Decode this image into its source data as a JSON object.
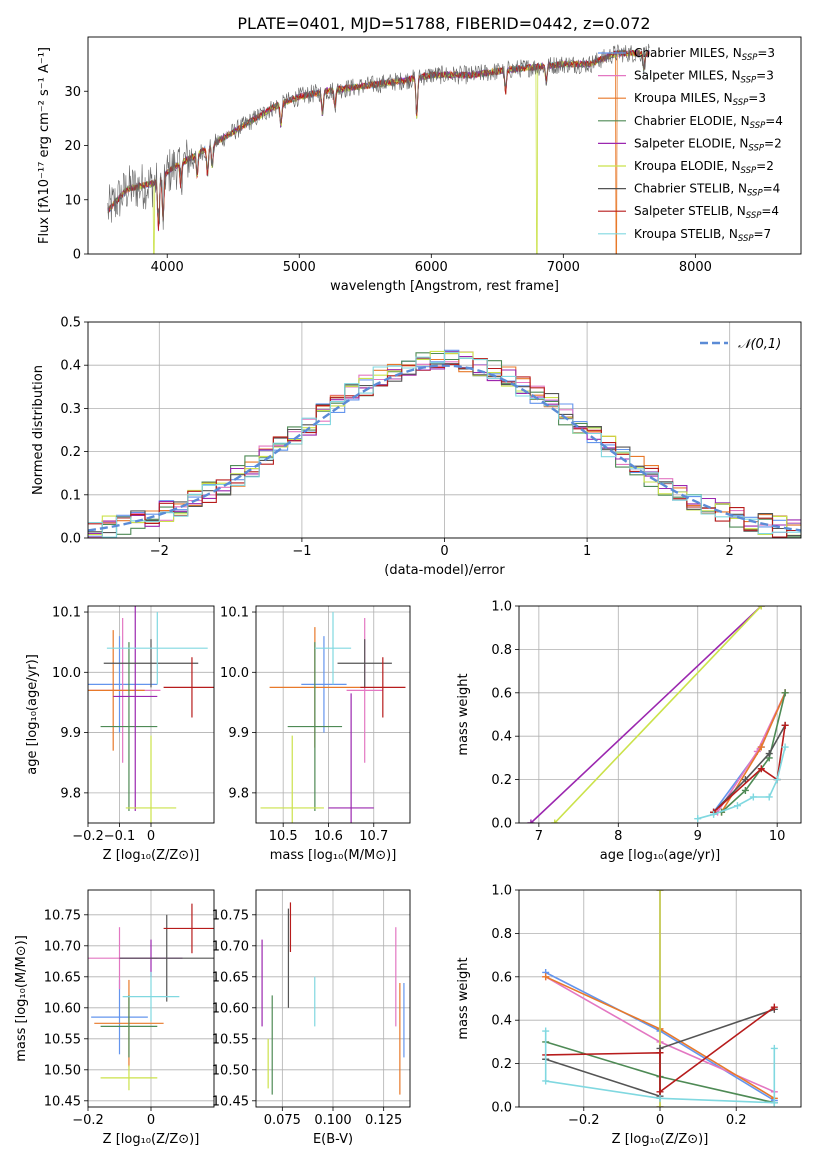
{
  "figure": {
    "title": "PLATE=0401, MJD=51788, FIBERID=0442, z=0.072"
  },
  "chart_data": [
    {
      "id": "spectrum",
      "type": "line",
      "xlabel": "wavelength [Angstrom, rest frame]",
      "ylabel": "Flux [fλ10⁻¹⁷ erg cm⁻² s⁻¹ A⁻¹]",
      "xlim": [
        3400,
        8800
      ],
      "ylim": [
        0,
        40
      ],
      "xticks": [
        4000,
        5000,
        6000,
        7000,
        8000
      ],
      "yticks": [
        0,
        10,
        20,
        30
      ],
      "x_range": [
        3550,
        7650
      ],
      "continuum": [
        [
          3550,
          8
        ],
        [
          3700,
          12
        ],
        [
          3900,
          13
        ],
        [
          4050,
          16
        ],
        [
          4200,
          18
        ],
        [
          4400,
          21
        ],
        [
          4600,
          24
        ],
        [
          4800,
          27
        ],
        [
          5000,
          29
        ],
        [
          5200,
          30
        ],
        [
          5500,
          31
        ],
        [
          5800,
          32
        ],
        [
          6000,
          33
        ],
        [
          6300,
          33
        ],
        [
          6600,
          34
        ],
        [
          7000,
          35
        ],
        [
          7200,
          35
        ],
        [
          7400,
          37
        ],
        [
          7650,
          37
        ]
      ],
      "absorption_lines": [
        [
          3934,
          9
        ],
        [
          3969,
          8
        ],
        [
          4102,
          4
        ],
        [
          4227,
          4
        ],
        [
          4305,
          5
        ],
        [
          4341,
          4
        ],
        [
          4861,
          4
        ],
        [
          5175,
          4
        ],
        [
          5270,
          3
        ],
        [
          5890,
          7
        ],
        [
          6563,
          4
        ],
        [
          6870,
          3
        ],
        [
          7610,
          3
        ]
      ],
      "dropouts": [
        [
          3900,
          "Kroupa ELODIE"
        ],
        [
          6800,
          "Kroupa ELODIE"
        ],
        [
          7400,
          "Kroupa MILES"
        ]
      ],
      "series": [
        {
          "name": "Chabrier MILES, N",
          "sub": "SSP",
          "val": "=3",
          "color": "#6495ed"
        },
        {
          "name": "Salpeter MILES, N",
          "sub": "SSP",
          "val": "=3",
          "color": "#e377c2"
        },
        {
          "name": "Kroupa MILES, N",
          "sub": "SSP",
          "val": "=3",
          "color": "#e8792a"
        },
        {
          "name": "Chabrier ELODIE, N",
          "sub": "SSP",
          "val": "=4",
          "color": "#4e8a55"
        },
        {
          "name": "Salpeter ELODIE, N",
          "sub": "SSP",
          "val": "=2",
          "color": "#9b27af"
        },
        {
          "name": "Kroupa ELODIE, N",
          "sub": "SSP",
          "val": "=2",
          "color": "#cbe24a"
        },
        {
          "name": "Chabrier STELIB, N",
          "sub": "SSP",
          "val": "=4",
          "color": "#555555"
        },
        {
          "name": "Salpeter STELIB, N",
          "sub": "SSP",
          "val": "=4",
          "color": "#b71c1c"
        },
        {
          "name": "Kroupa STELIB, N",
          "sub": "SSP",
          "val": "=7",
          "color": "#80d8e0"
        }
      ],
      "legend": "upper-right"
    },
    {
      "id": "residuals",
      "type": "histogram",
      "xlabel": "(data-model)/error",
      "ylabel": "Normed distribution",
      "xlim": [
        -2.5,
        2.5
      ],
      "ylim": [
        0,
        0.5
      ],
      "xticks": [
        -2,
        -1,
        0,
        1,
        2
      ],
      "yticks": [
        0.0,
        0.1,
        0.2,
        0.3,
        0.4,
        0.5
      ],
      "bin_width": 0.1,
      "bin_start": -2.5,
      "reference": {
        "label": "𝒩(0,1)",
        "color": "#5b8bd6",
        "mean": 0,
        "sigma": 1
      },
      "legend": "upper-right",
      "grid": true
    },
    {
      "id": "age_vs_Z",
      "type": "errorbar",
      "xlabel": "Z [log₁₀(Z/Z⊙)]",
      "ylabel": "age  [log₁₀(age/yr)]",
      "xlim": [
        -0.2,
        0.2
      ],
      "ylim": [
        9.75,
        10.11
      ],
      "xticks": [
        -0.2,
        -0.1,
        0.0
      ],
      "yticks": [
        9.8,
        9.9,
        10.0,
        10.1
      ],
      "points": [
        {
          "series": "Chabrier MILES",
          "x": -0.1,
          "xerr": 0.12,
          "y": 9.98,
          "yerr": 0.08
        },
        {
          "series": "Salpeter MILES",
          "x": -0.09,
          "xerr": 0.12,
          "y": 9.97,
          "yerr": 0.12
        },
        {
          "series": "Kroupa MILES",
          "x": -0.12,
          "xerr": 0.1,
          "y": 9.97,
          "yerr": 0.1
        },
        {
          "series": "Chabrier ELODIE",
          "x": -0.07,
          "xerr": 0.09,
          "y": 9.91,
          "yerr": 0.14
        },
        {
          "series": "Salpeter ELODIE",
          "x": -0.05,
          "xerr": 0.07,
          "y": 9.96,
          "yerr": 0.19
        },
        {
          "series": "Kroupa ELODIE",
          "x": 0.0,
          "xerr": 0.08,
          "y": 9.775,
          "yerr": 0.12
        },
        {
          "series": "Chabrier STELIB",
          "x": 0.0,
          "xerr": 0.15,
          "y": 10.015,
          "yerr": 0.04
        },
        {
          "series": "Salpeter STELIB",
          "x": 0.13,
          "xerr": 0.09,
          "y": 9.975,
          "yerr": 0.05
        },
        {
          "series": "Kroupa STELIB",
          "x": 0.02,
          "xerr": 0.16,
          "y": 10.04,
          "yerr": 0.06
        }
      ],
      "grid": true
    },
    {
      "id": "age_vs_mass",
      "type": "errorbar",
      "xlabel": "mass [log₁₀(M/M⊙)]",
      "ylabel": "",
      "xlim": [
        10.44,
        10.78
      ],
      "ylim": [
        9.75,
        10.11
      ],
      "xticks": [
        10.5,
        10.6,
        10.7
      ],
      "yticks": [
        9.8,
        9.9,
        10.0,
        10.1
      ],
      "points": [
        {
          "series": "Chabrier MILES",
          "x": 10.59,
          "xerr": 0.05,
          "y": 9.98,
          "yerr": 0.08
        },
        {
          "series": "Salpeter MILES",
          "x": 10.68,
          "xerr": 0.04,
          "y": 9.97,
          "yerr": 0.12
        },
        {
          "series": "Kroupa MILES",
          "x": 10.57,
          "xerr": 0.1,
          "y": 9.975,
          "yerr": 0.1
        },
        {
          "series": "Chabrier ELODIE",
          "x": 10.57,
          "xerr": 0.06,
          "y": 9.91,
          "yerr": 0.14
        },
        {
          "series": "Salpeter ELODIE",
          "x": 10.65,
          "xerr": 0.05,
          "y": 9.775,
          "yerr": 0.19
        },
        {
          "series": "Kroupa ELODIE",
          "x": 10.52,
          "xerr": 0.07,
          "y": 9.775,
          "yerr": 0.12
        },
        {
          "series": "Chabrier STELIB",
          "x": 10.68,
          "xerr": 0.06,
          "y": 10.015,
          "yerr": 0.04
        },
        {
          "series": "Salpeter STELIB",
          "x": 10.72,
          "xerr": 0.05,
          "y": 9.975,
          "yerr": 0.05
        },
        {
          "series": "Kroupa STELIB",
          "x": 10.61,
          "xerr": 0.04,
          "y": 10.04,
          "yerr": 0.06
        }
      ],
      "grid": true
    },
    {
      "id": "mass_weight_vs_age",
      "type": "line",
      "xlabel": "age  [log₁₀(age/yr)]",
      "ylabel": "mass weight",
      "xlim": [
        6.75,
        10.3
      ],
      "ylim": [
        0,
        1.0
      ],
      "xticks": [
        7,
        8,
        9,
        10
      ],
      "yticks": [
        0.0,
        0.2,
        0.4,
        0.6,
        0.8,
        1.0
      ],
      "series": [
        {
          "series": "Chabrier MILES",
          "points": [
            [
              9.2,
              0.05
            ],
            [
              9.8,
              0.35
            ],
            [
              10.1,
              0.6
            ]
          ]
        },
        {
          "series": "Salpeter MILES",
          "points": [
            [
              9.25,
              0.05
            ],
            [
              9.75,
              0.33
            ],
            [
              10.1,
              0.6
            ]
          ]
        },
        {
          "series": "Kroupa MILES",
          "points": [
            [
              9.3,
              0.05
            ],
            [
              9.8,
              0.35
            ],
            [
              10.1,
              0.6
            ]
          ]
        },
        {
          "series": "Chabrier ELODIE",
          "points": [
            [
              9.3,
              0.05
            ],
            [
              9.6,
              0.15
            ],
            [
              9.9,
              0.3
            ],
            [
              10.1,
              0.6
            ]
          ]
        },
        {
          "series": "Salpeter ELODIE",
          "points": [
            [
              6.9,
              0.0
            ],
            [
              9.8,
              1.0
            ]
          ]
        },
        {
          "series": "Kroupa ELODIE",
          "points": [
            [
              7.2,
              0.0
            ],
            [
              9.8,
              1.0
            ]
          ]
        },
        {
          "series": "Chabrier STELIB",
          "points": [
            [
              9.2,
              0.05
            ],
            [
              9.6,
              0.2
            ],
            [
              9.9,
              0.32
            ],
            [
              10.1,
              0.45
            ]
          ]
        },
        {
          "series": "Salpeter STELIB",
          "points": [
            [
              9.2,
              0.05
            ],
            [
              9.8,
              0.25
            ],
            [
              10.0,
              0.2
            ],
            [
              10.1,
              0.45
            ]
          ]
        },
        {
          "series": "Kroupa STELIB",
          "points": [
            [
              9.0,
              0.02
            ],
            [
              9.2,
              0.04
            ],
            [
              9.5,
              0.08
            ],
            [
              9.7,
              0.12
            ],
            [
              9.9,
              0.12
            ],
            [
              10.0,
              0.2
            ],
            [
              10.1,
              0.35
            ]
          ]
        }
      ],
      "grid": true
    },
    {
      "id": "mass_vs_Z",
      "type": "errorbar",
      "xlabel": "Z [log₁₀(Z/Z⊙)]",
      "ylabel": "mass [log₁₀(M/M⊙)]",
      "xlim": [
        -0.2,
        0.2
      ],
      "ylim": [
        10.44,
        10.79
      ],
      "xticks": [
        -0.2,
        0.0
      ],
      "yticks": [
        10.45,
        10.5,
        10.55,
        10.6,
        10.65,
        10.7,
        10.75
      ],
      "points": [
        {
          "series": "Chabrier MILES",
          "x": -0.1,
          "xerr": 0.09,
          "y": 10.585,
          "yerr": 0.06
        },
        {
          "series": "Salpeter MILES",
          "x": -0.1,
          "xerr": 0.12,
          "y": 10.68,
          "yerr": 0.05
        },
        {
          "series": "Kroupa MILES",
          "x": -0.07,
          "xerr": 0.11,
          "y": 10.575,
          "yerr": 0.07
        },
        {
          "series": "Chabrier ELODIE",
          "x": -0.07,
          "xerr": 0.09,
          "y": 10.57,
          "yerr": 0.05
        },
        {
          "series": "Salpeter ELODIE",
          "x": 0.0,
          "xerr": 0.1,
          "y": 10.68,
          "yerr": 0.03
        },
        {
          "series": "Kroupa ELODIE",
          "x": -0.07,
          "xerr": 0.09,
          "y": 10.487,
          "yerr": 0.02
        },
        {
          "series": "Chabrier STELIB",
          "x": 0.05,
          "xerr": 0.15,
          "y": 10.68,
          "yerr": 0.07
        },
        {
          "series": "Salpeter STELIB",
          "x": 0.13,
          "xerr": 0.09,
          "y": 10.728,
          "yerr": 0.04
        },
        {
          "series": "Kroupa STELIB",
          "x": 0.0,
          "xerr": 0.09,
          "y": 10.618,
          "yerr": 0.04
        }
      ],
      "grid": true
    },
    {
      "id": "mass_vs_ebv",
      "type": "errorbar",
      "xlabel": "E(B-V)",
      "ylabel": "",
      "xlim": [
        0.062,
        0.138
      ],
      "ylim": [
        10.44,
        10.79
      ],
      "xticks": [
        0.075,
        0.1,
        0.125
      ],
      "xticklabels": [
        "0.075",
        "0.100",
        "0.125"
      ],
      "yticks": [
        10.45,
        10.5,
        10.55,
        10.6,
        10.65,
        10.7,
        10.75
      ],
      "points": [
        {
          "series": "Salpeter ELODIE",
          "x": 0.065,
          "y": 10.64,
          "yerr": 0.07
        },
        {
          "series": "Kroupa ELODIE",
          "x": 0.068,
          "y": 10.51,
          "yerr": 0.04
        },
        {
          "series": "Chabrier ELODIE",
          "x": 0.07,
          "y": 10.54,
          "yerr": 0.08
        },
        {
          "series": "Chabrier STELIB",
          "x": 0.078,
          "y": 10.68,
          "yerr": 0.08
        },
        {
          "series": "Salpeter STELIB",
          "x": 0.079,
          "y": 10.73,
          "yerr": 0.04
        },
        {
          "series": "Kroupa STELIB",
          "x": 0.091,
          "y": 10.61,
          "yerr": 0.04
        },
        {
          "series": "Salpeter MILES",
          "x": 0.131,
          "y": 10.65,
          "yerr": 0.08
        },
        {
          "series": "Kroupa MILES",
          "x": 0.133,
          "y": 10.55,
          "yerr": 0.09
        },
        {
          "series": "Chabrier MILES",
          "x": 0.135,
          "y": 10.58,
          "yerr": 0.06
        }
      ],
      "grid": true
    },
    {
      "id": "mass_weight_vs_Z",
      "type": "line",
      "xlabel": "Z [log₁₀(Z/Z⊙)]",
      "ylabel": "mass weight",
      "xlim": [
        -0.37,
        0.37
      ],
      "ylim": [
        0,
        1.0
      ],
      "xticks": [
        -0.2,
        0.0,
        0.2
      ],
      "yticks": [
        0.0,
        0.2,
        0.4,
        0.6,
        0.8,
        1.0
      ],
      "series": [
        {
          "series": "Chabrier MILES",
          "points": [
            [
              -0.3,
              0.62
            ],
            [
              0.0,
              0.35
            ],
            [
              0.3,
              0.03
            ]
          ]
        },
        {
          "series": "Salpeter MILES",
          "points": [
            [
              -0.3,
              0.6
            ],
            [
              0.0,
              0.3
            ],
            [
              0.3,
              0.07
            ]
          ]
        },
        {
          "series": "Kroupa MILES",
          "points": [
            [
              -0.3,
              0.6
            ],
            [
              0.0,
              0.36
            ],
            [
              0.3,
              0.04
            ]
          ]
        },
        {
          "series": "Chabrier ELODIE",
          "points": [
            [
              -0.3,
              0.3
            ],
            [
              0.0,
              0.14
            ],
            [
              0.3,
              0.02
            ]
          ]
        },
        {
          "series": "Salpeter ELODIE",
          "points": [
            [
              0.0,
              0.0
            ],
            [
              0.0,
              1.0
            ]
          ]
        },
        {
          "series": "Kroupa ELODIE",
          "points": [
            [
              0.0,
              0.0
            ],
            [
              0.0,
              1.0
            ]
          ]
        },
        {
          "series": "Chabrier STELIB",
          "points": [
            [
              -0.3,
              0.22
            ],
            [
              0.0,
              0.05
            ],
            [
              0.0,
              0.27
            ],
            [
              0.3,
              0.45
            ]
          ]
        },
        {
          "series": "Salpeter STELIB",
          "points": [
            [
              -0.3,
              0.24
            ],
            [
              0.0,
              0.25
            ],
            [
              0.0,
              0.07
            ],
            [
              0.3,
              0.46
            ]
          ]
        },
        {
          "series": "Kroupa STELIB",
          "points": [
            [
              -0.3,
              0.35
            ],
            [
              -0.3,
              0.12
            ],
            [
              0.0,
              0.04
            ],
            [
              0.3,
              0.02
            ],
            [
              0.3,
              0.27
            ]
          ]
        }
      ],
      "grid": true
    }
  ]
}
